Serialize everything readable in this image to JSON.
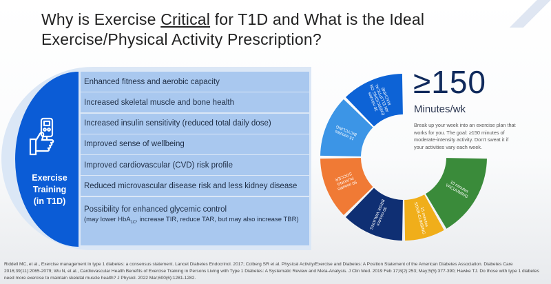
{
  "title": {
    "line1_pre": "Why is Exercise ",
    "line1_emph": "Critical",
    "line1_post": " for T1D and What is the Ideal",
    "line2": "Exercise/Physical Activity Prescription?"
  },
  "left_panel": {
    "label_lines": [
      "Exercise",
      "Training",
      "(in T1D)"
    ],
    "icon": "glucose-meter-thumbs-up-icon",
    "benefits": [
      "Enhanced fitness and aerobic capacity",
      "Increased skeletal muscle and bone health",
      "Increased insulin sensitivity (reduced total daily dose)",
      "Improved sense of wellbeing",
      "Improved cardiovascular (CVD) risk profile",
      "Reduced microvascular disease risk and less kidney disease"
    ],
    "last_benefit": {
      "main": "Possibility for enhanced glycemic control",
      "sub_pre": "(may lower HbA",
      "sub_subscript": "1C",
      "sub_post": ", increase TIR, reduce TAR, but may also increase TBR)"
    }
  },
  "prescription": {
    "headline": "≥150",
    "unit": "Minutes/wk",
    "description": "Break up your week into an exercise plan that works for you. The goal: ≥150 minutes of moderate-intensity activity. Don't sweat it if your activities vary each week.",
    "segments": [
      {
        "minutes": "10 minutes",
        "activity": "VACUUMING",
        "color": "#3a8b3a"
      },
      {
        "minutes": "15 minutes",
        "activity": "STAIR-CLIMBING",
        "color": "#f0ae1a"
      },
      {
        "minutes": "30 minutes",
        "activity": "BRISK WALKING",
        "color": "#0f2f73"
      },
      {
        "minutes": "50 minutes",
        "activity": "PLAYING SOCCER",
        "color": "#f07a35"
      },
      {
        "minutes": "15 minutes",
        "activity": "BICYCLING",
        "color": "#3c95e6"
      },
      {
        "minutes": "30 minutes",
        "activity": "EXERCISING ON AN ELLIPTICAL MACHINE",
        "color": "#0d63d6"
      }
    ]
  },
  "references": "Riddell MC, et al.,  Exercise management in type 1 diabetes: a consensus statement. Lancet Diabetes Endocrinol. 2017; Colberg SR et al. Physical Activity/Exercise and Diabetes: A Position Statement of the American Diabetes Association. Diabetes Care 2016;39(11):2065-2079; Wu N, et al., Cardiovascular Health Benefits of Exercise Training in Persons Living with Type 1 Diabetes: A Systematic Review and Meta-Analysis. J Clin Med. 2019 Feb 17;8(2):253; May;5(5):377-390; Hawke TJ. Do those with type 1 diabetes need more exercise to maintain skeletal muscle health? J Physiol. 2022 Mar;600(6):1281-1282."
}
